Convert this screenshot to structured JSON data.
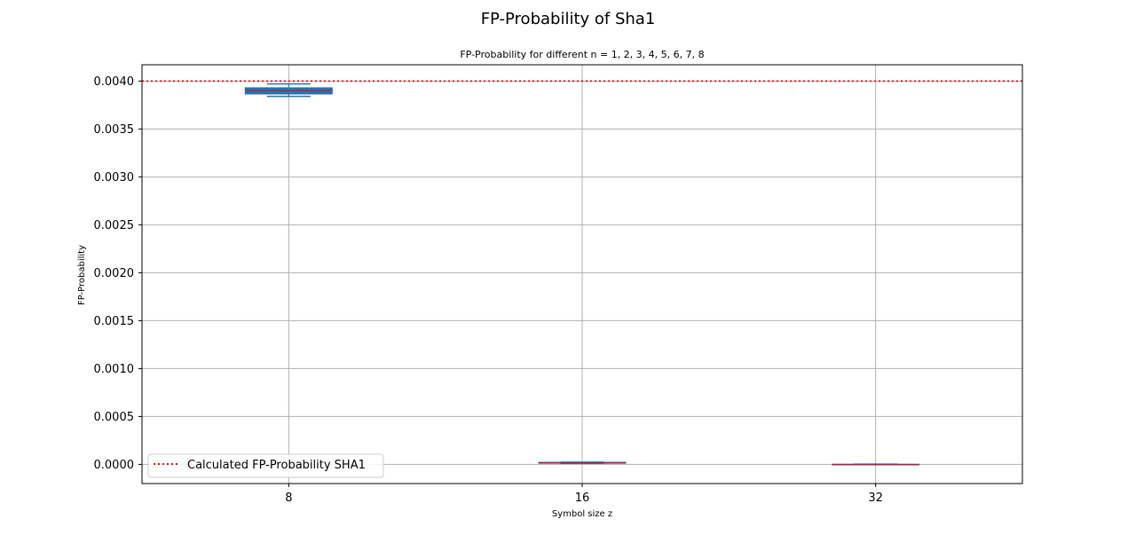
{
  "chart_data": {
    "type": "box",
    "suptitle": "FP-Probability of Sha1",
    "title": "FP-Probability for different n = 1, 2, 3, 4, 5, 6, 7, 8",
    "xlabel": "Symbol size z",
    "ylabel": "FP-Probability",
    "categories": [
      "8",
      "16",
      "32"
    ],
    "ylim": [
      -0.0002,
      0.00417
    ],
    "yticks": [
      0.0,
      0.0005,
      0.001,
      0.0015,
      0.002,
      0.0025,
      0.003,
      0.0035,
      0.004
    ],
    "ytick_labels": [
      "0.0000",
      "0.0005",
      "0.0010",
      "0.0015",
      "0.0020",
      "0.0025",
      "0.0030",
      "0.0035",
      "0.0040"
    ],
    "grid": true,
    "boxes": [
      {
        "category": "8",
        "whisker_low": 0.00384,
        "q1": 0.003865,
        "median": 0.0039,
        "q3": 0.00393,
        "whisker_high": 0.00397
      },
      {
        "category": "16",
        "whisker_low": 1.05e-05,
        "q1": 1.15e-05,
        "median": 1.6e-05,
        "q3": 2.2e-05,
        "whisker_high": 2.35e-05
      },
      {
        "category": "32",
        "whisker_low": 0.0,
        "q1": 0.0,
        "median": 5e-07,
        "q3": 1.5e-06,
        "whisker_high": 2e-06
      }
    ],
    "reference_line": {
      "value": 0.004,
      "label": "Calculated FP-Probability SHA1",
      "color": "#ff0000",
      "style": "dotted"
    },
    "legend_position": "lower-left",
    "colors": {
      "box": "#1f77b4",
      "median": "#ff0000",
      "grid": "#b0b0b0"
    }
  }
}
